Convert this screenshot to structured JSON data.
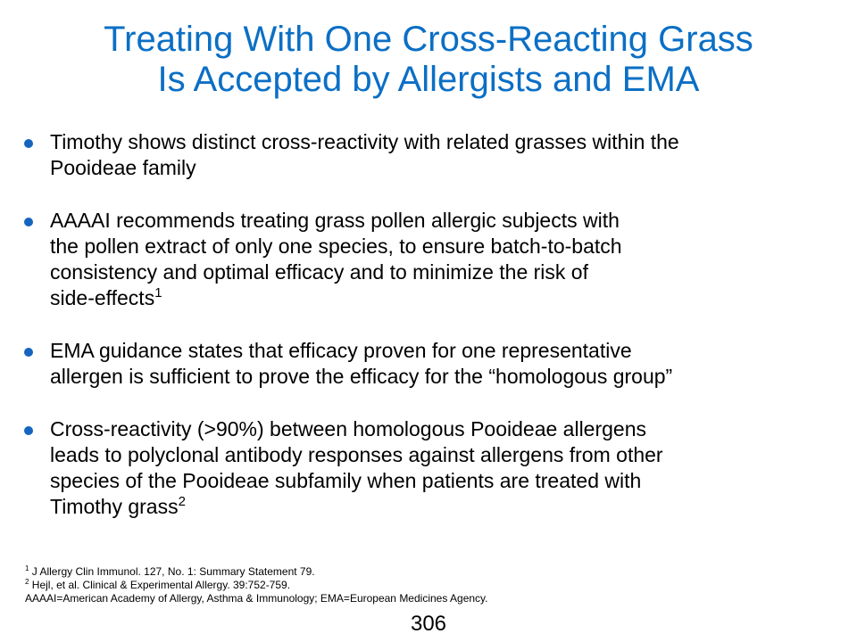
{
  "title": {
    "line1": "Treating With One Cross-Reacting Grass",
    "line2": "Is Accepted by Allergists and EMA"
  },
  "bullets": [
    {
      "lines": [
        "Timothy shows distinct cross-reactivity with related grasses within the",
        "Pooideae family"
      ],
      "sup": ""
    },
    {
      "lines": [
        "AAAAI recommends treating grass pollen allergic subjects with",
        "the pollen extract of only one species, to ensure batch-to-batch",
        "consistency and optimal efficacy and to minimize the risk of",
        "side-effects"
      ],
      "sup": "1"
    },
    {
      "lines": [
        "EMA guidance states that efficacy proven for one representative",
        "allergen is sufficient to prove the efficacy for the “homologous group”"
      ],
      "sup": ""
    },
    {
      "lines": [
        "Cross-reactivity (>90%) between homologous Pooideae allergens",
        "leads to polyclonal antibody responses against allergens from other",
        "species of the Pooideae subfamily when patients are treated with",
        "Timothy grass"
      ],
      "sup": "2"
    }
  ],
  "footnotes": {
    "ref1_marker": "1",
    "ref1_text": " J Allergy Clin Immunol.  127, No. 1: Summary Statement 79.",
    "ref2_marker": "2",
    "ref2_text": " Hejl, et al. Clinical & Experimental Allergy. 39:752-759.",
    "abbreviations": "AAAAI=American Academy of Allergy, Asthma & Immunology;  EMA=European Medicines Agency."
  },
  "page_number": "306",
  "colors": {
    "title": "#0b6fc5",
    "bullet": "#1565c0",
    "text": "#000000",
    "background": "#ffffff"
  }
}
